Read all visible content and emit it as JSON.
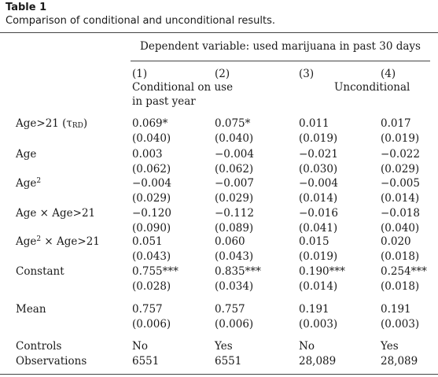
{
  "table_label": "Table 1",
  "table_title": "Comparison of conditional and unconditional results.",
  "dependent_variable": "Dependent variable: used marijuana in past 30 days",
  "column_numbers": [
    "(1)",
    "(2)",
    "(3)",
    "(4)"
  ],
  "column_group_labels": {
    "conditional": "Conditional on use in past year",
    "unconditional": "Unconditional"
  },
  "rows": [
    {
      "label": "Age>21 (τRD)",
      "label_main": "Age>21 (τ",
      "label_sub": "RD",
      "label_end": ")",
      "values": [
        "0.069*",
        "0.075*",
        "0.011",
        "0.017"
      ],
      "se": [
        "(0.040)",
        "(0.040)",
        "(0.019)",
        "(0.019)"
      ]
    },
    {
      "label": "Age",
      "values": [
        "0.003",
        "−0.004",
        "−0.021",
        "−0.022"
      ],
      "se": [
        "(0.062)",
        "(0.062)",
        "(0.030)",
        "(0.029)"
      ]
    },
    {
      "label": "Age2",
      "label_main": "Age",
      "label_sup": "2",
      "values": [
        "−0.004",
        "−0.007",
        "−0.004",
        "−0.005"
      ],
      "se": [
        "(0.029)",
        "(0.029)",
        "(0.014)",
        "(0.014)"
      ]
    },
    {
      "label": "Age × Age>21",
      "values": [
        "−0.120",
        "−0.112",
        "−0.016",
        "−0.018"
      ],
      "se": [
        "(0.090)",
        "(0.089)",
        "(0.041)",
        "(0.040)"
      ]
    },
    {
      "label": "Age2 × Age>21",
      "label_main": "Age",
      "label_sup": "2",
      "label_end": " × Age>21",
      "values": [
        "0.051",
        "0.060",
        "0.015",
        "0.020"
      ],
      "se": [
        "(0.043)",
        "(0.043)",
        "(0.019)",
        "(0.018)"
      ]
    },
    {
      "label": "Constant",
      "values": [
        "0.755***",
        "0.835***",
        "0.190***",
        "0.254***"
      ],
      "se": [
        "(0.028)",
        "(0.034)",
        "(0.014)",
        "(0.018)"
      ]
    },
    {
      "label": "Mean",
      "values": [
        "0.757",
        "0.757",
        "0.191",
        "0.191"
      ],
      "se": [
        "(0.006)",
        "(0.006)",
        "(0.003)",
        "(0.003)"
      ]
    }
  ],
  "controls": {
    "label": "Controls",
    "values": [
      "No",
      "Yes",
      "No",
      "Yes"
    ]
  },
  "observations": {
    "label": "Observations",
    "values": [
      "6551",
      "6551",
      "28,089",
      "28,089"
    ]
  }
}
